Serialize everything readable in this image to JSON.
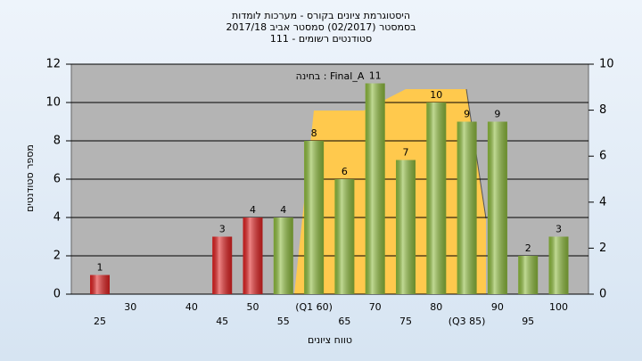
{
  "chart_data": {
    "type": "bar",
    "title": "היסטוגרמת ציונים בקורס - מערכות לומדות",
    "subtitle": "בסמסטר  (02/2017)  סמסטר אביב 2017/18",
    "subtitle2": "סטודנטים רשומים - 111",
    "annotation": "בחינה : Final_A",
    "x_label": "טווח ציונים",
    "y_label": "מספר סטודנטים",
    "categories": [
      "25",
      "30",
      null,
      "40",
      "45",
      "50",
      "55",
      "(Q1 60)",
      "65",
      "70",
      "75",
      "80",
      "(Q3 85)",
      "90",
      "95",
      "100"
    ],
    "values": [
      1,
      null,
      null,
      null,
      3,
      4,
      4,
      8,
      6,
      11,
      7,
      10,
      9,
      9,
      2,
      3
    ],
    "colors": [
      "#e02020",
      null,
      null,
      null,
      "#e02020",
      "#e02020",
      "#8dbb3c",
      "#8dbb3c",
      "#8dbb3c",
      "#8dbb3c",
      "#8dbb3c",
      "#8dbb3c",
      "#8dbb3c",
      "#8dbb3c",
      "#8dbb3c",
      "#8dbb3c"
    ],
    "ylim": [
      0,
      12
    ],
    "yticks": [
      0,
      2,
      4,
      6,
      8,
      10,
      12
    ],
    "y2lim": [
      0,
      10
    ],
    "y2ticks": [
      0,
      2,
      4,
      6,
      8,
      10
    ],
    "grid": true
  }
}
